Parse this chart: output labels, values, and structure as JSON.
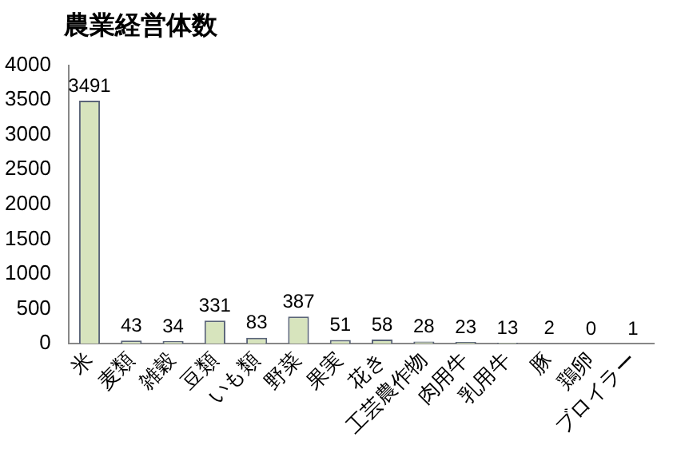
{
  "chart_data": {
    "type": "bar",
    "title": "農業経営体数",
    "categories": [
      "米",
      "麦類",
      "雑穀",
      "豆類",
      "いも類",
      "野菜",
      "果実",
      "花き",
      "工芸農作物",
      "肉用牛",
      "乳用牛",
      "豚",
      "鶏卵",
      "ブロイラー"
    ],
    "values": [
      3491,
      43,
      34,
      331,
      83,
      387,
      51,
      58,
      28,
      23,
      13,
      2,
      0,
      1
    ],
    "color": "#d7e4bd",
    "ylim": [
      0,
      4000
    ],
    "yticks": [
      0,
      500,
      1000,
      1500,
      2000,
      2500,
      3000,
      3500,
      4000
    ],
    "grid": false,
    "legend": false,
    "data_labels": true
  }
}
